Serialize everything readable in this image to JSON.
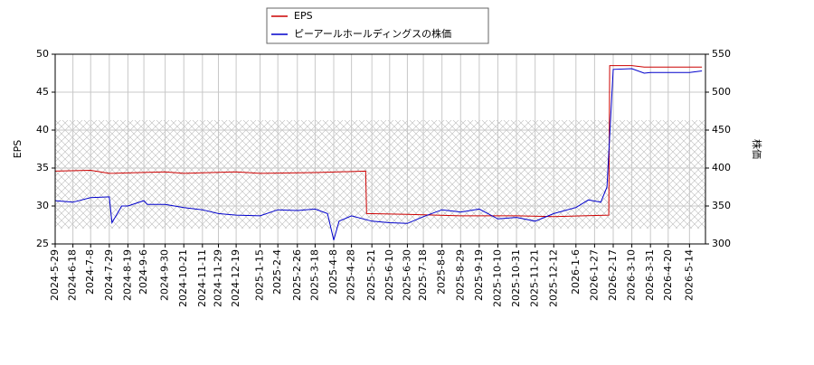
{
  "chart_data": {
    "type": "line",
    "y_label": "EPS",
    "y2_label": "株価",
    "grid": true,
    "legend": "top",
    "xlim": [
      "2024-5-29",
      "2026-6-1"
    ],
    "xticks": [
      "2024-5-29",
      "2024-6-18",
      "2024-7-8",
      "2024-7-29",
      "2024-8-19",
      "2024-9-6",
      "2024-9-30",
      "2024-10-21",
      "2024-11-11",
      "2024-11-29",
      "2024-12-19",
      "2025-1-15",
      "2025-2-4",
      "2025-2-26",
      "2025-3-18",
      "2025-4-8",
      "2025-4-28",
      "2025-5-21",
      "2025-6-10",
      "2025-6-30",
      "2025-7-18",
      "2025-8-8",
      "2025-8-29",
      "2025-9-19",
      "2025-10-10",
      "2025-10-31",
      "2025-11-21",
      "2025-12-12",
      "2026-1-6",
      "2026-1-27",
      "2026-2-17",
      "2026-3-10",
      "2026-3-31",
      "2026-4-20",
      "2026-5-14"
    ],
    "ylim": [
      25,
      50
    ],
    "yticks": [
      25,
      30,
      35,
      40,
      45,
      50
    ],
    "y2lim": [
      300,
      550
    ],
    "y2ticks": [
      300,
      350,
      400,
      450,
      500,
      550
    ],
    "series": [
      {
        "name": "EPS",
        "color": "#cc0000",
        "x": [
          "2024-5-29",
          "2024-7-8",
          "2024-7-29",
          "2024-9-30",
          "2024-10-21",
          "2024-12-19",
          "2025-1-15",
          "2025-3-18",
          "2025-5-14",
          "2025-5-15",
          "2025-6-30",
          "2025-8-29",
          "2025-10-31",
          "2025-12-12",
          "2026-2-12",
          "2026-2-13",
          "2026-3-10",
          "2026-3-24",
          "2026-5-28"
        ],
        "values": [
          34.6,
          34.7,
          34.3,
          34.5,
          34.3,
          34.5,
          34.3,
          34.4,
          34.6,
          29.0,
          28.9,
          28.7,
          28.7,
          28.6,
          28.8,
          48.5,
          48.5,
          48.3,
          48.3
        ]
      },
      {
        "name": "ピーアールホールディングスの株価",
        "color": "#0000cc",
        "axis": "y2",
        "x": [
          "2024-5-29",
          "2024-6-18",
          "2024-7-8",
          "2024-7-29",
          "2024-8-1",
          "2024-8-12",
          "2024-8-19",
          "2024-9-6",
          "2024-9-10",
          "2024-9-30",
          "2024-10-21",
          "2024-11-11",
          "2024-11-29",
          "2024-12-19",
          "2025-1-15",
          "2025-2-4",
          "2025-2-26",
          "2025-3-18",
          "2025-4-1",
          "2025-4-8",
          "2025-4-14",
          "2025-4-28",
          "2025-5-21",
          "2025-6-10",
          "2025-6-30",
          "2025-7-18",
          "2025-8-8",
          "2025-8-29",
          "2025-9-19",
          "2025-10-10",
          "2025-10-31",
          "2025-11-21",
          "2025-12-12",
          "2026-1-6",
          "2026-1-20",
          "2026-2-3",
          "2026-2-10",
          "2026-2-12",
          "2026-2-17",
          "2026-3-10",
          "2026-3-24",
          "2026-3-31",
          "2026-4-20",
          "2026-5-14",
          "2026-5-28"
        ],
        "values": [
          357,
          355,
          361,
          362,
          328,
          350,
          350,
          357,
          352,
          352,
          348,
          345,
          340,
          338,
          337,
          345,
          344,
          346,
          340,
          305,
          330,
          337,
          330,
          328,
          327,
          336,
          345,
          342,
          346,
          333,
          335,
          330,
          340,
          348,
          358,
          355,
          375,
          420,
          530,
          531,
          525,
          526,
          526,
          526,
          528
        ]
      }
    ]
  }
}
